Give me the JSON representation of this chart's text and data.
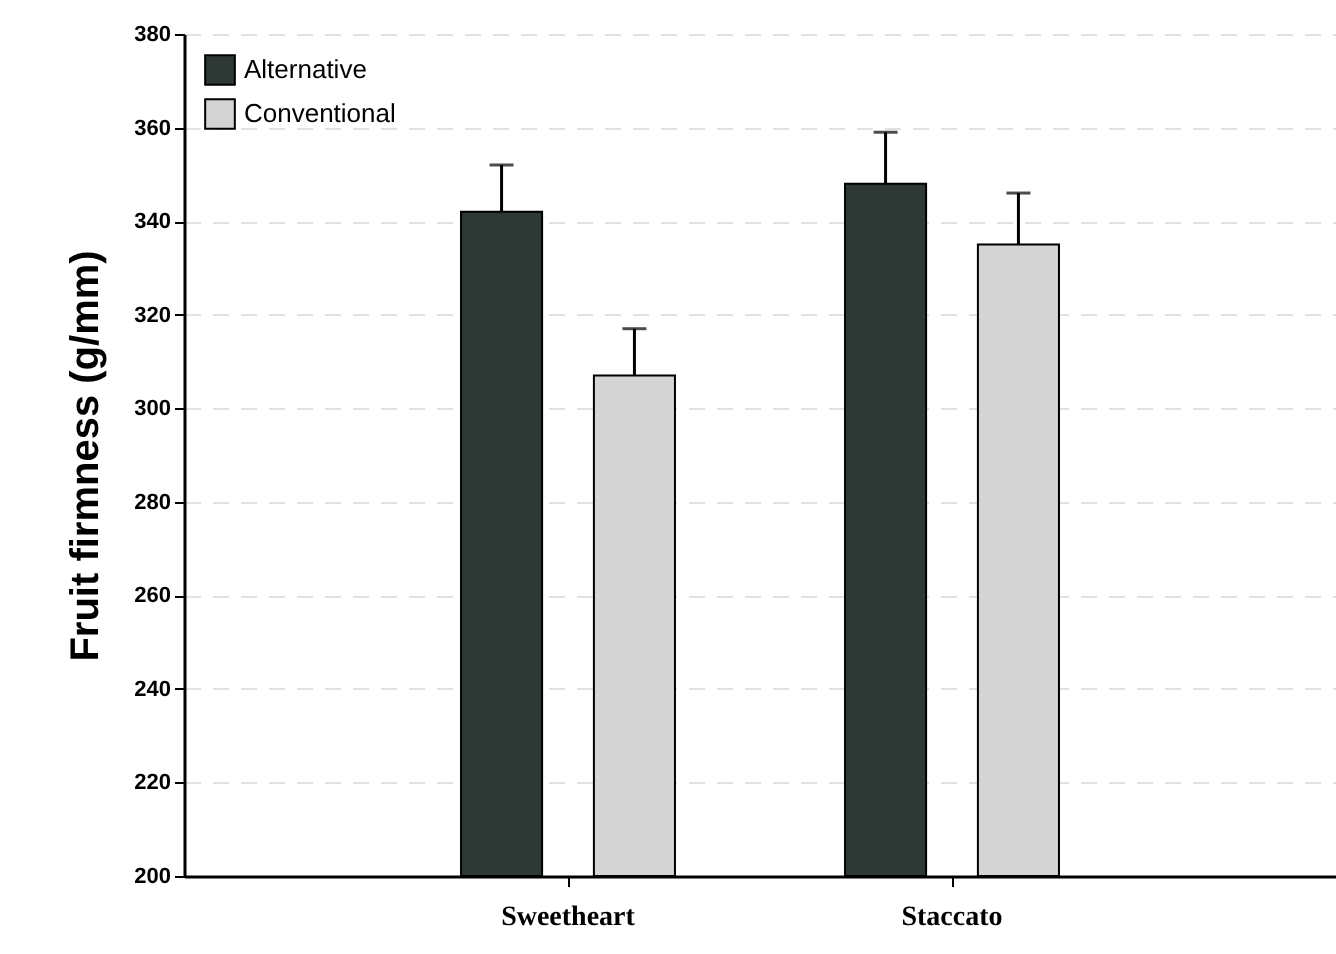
{
  "chart_data": {
    "type": "bar",
    "ylabel": "Fruit firmness (g/mm)",
    "categories": [
      "Sweetheart",
      "Staccato"
    ],
    "series": [
      {
        "name": "Alternative",
        "color": "#2e3835",
        "values": [
          342,
          348
        ],
        "errors": [
          [
            342,
            352
          ],
          [
            348,
            359
          ]
        ]
      },
      {
        "name": "Conventional",
        "color": "#d4d4d4",
        "values": [
          307,
          335
        ],
        "errors": [
          [
            307,
            317
          ],
          [
            335,
            346
          ]
        ]
      }
    ],
    "ylim": [
      200,
      380
    ],
    "yticks": [
      200,
      220,
      240,
      260,
      280,
      300,
      320,
      340,
      360,
      380
    ],
    "grid": "y",
    "legend": "top left"
  }
}
